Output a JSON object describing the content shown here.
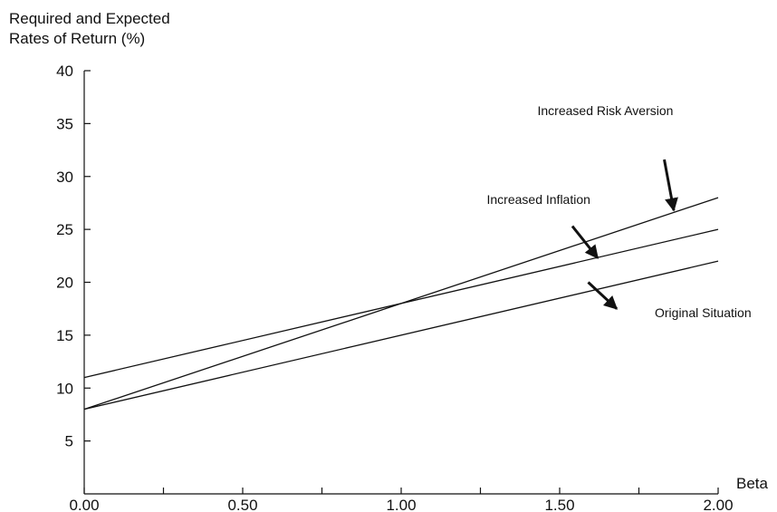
{
  "chart_data": {
    "type": "line",
    "ylabel_lines": [
      "Required and Expected",
      "Rates of Return (%)"
    ],
    "xlabel": "Beta",
    "xlim": [
      0,
      2
    ],
    "ylim": [
      0,
      40
    ],
    "x_ticks": [
      0,
      0.25,
      0.5,
      0.75,
      1.0,
      1.25,
      1.5,
      1.75,
      2.0
    ],
    "x_tick_labels": [
      "0.00",
      "0.50",
      "1.00",
      "1.50",
      "2.00"
    ],
    "x_tick_label_values": [
      0,
      0.5,
      1.0,
      1.5,
      2.0
    ],
    "y_ticks": [
      5,
      10,
      15,
      20,
      25,
      30,
      35,
      40
    ],
    "y_tick_labels": [
      "5",
      "10",
      "15",
      "20",
      "25",
      "30",
      "35",
      "40"
    ],
    "grid": false,
    "series": [
      {
        "name": "Original Situation",
        "x": [
          0,
          2
        ],
        "y": [
          8,
          22
        ]
      },
      {
        "name": "Increased Inflation",
        "x": [
          0,
          2
        ],
        "y": [
          11,
          25
        ]
      },
      {
        "name": "Increased Risk Aversion",
        "x": [
          0,
          2
        ],
        "y": [
          8,
          28
        ]
      }
    ],
    "annotations": [
      {
        "text": "Original Situation",
        "text_at": [
          1.8,
          16.7
        ],
        "arrow_from": [
          1.68,
          17.5
        ],
        "arrow_to": [
          1.59,
          20.0
        ],
        "anchor": "start",
        "series": "Original Situation"
      },
      {
        "text": "Increased Inflation",
        "text_at": [
          1.27,
          27.4
        ],
        "arrow_from": [
          1.62,
          22.3
        ],
        "arrow_to": [
          1.54,
          25.3
        ],
        "anchor": "start",
        "series": "Increased Inflation"
      },
      {
        "text": "Increased Risk Aversion",
        "text_at": [
          1.43,
          35.8
        ],
        "arrow_from": [
          1.86,
          26.8
        ],
        "arrow_to": [
          1.83,
          31.6
        ],
        "anchor": "start",
        "series": "Increased Risk Aversion"
      }
    ]
  }
}
